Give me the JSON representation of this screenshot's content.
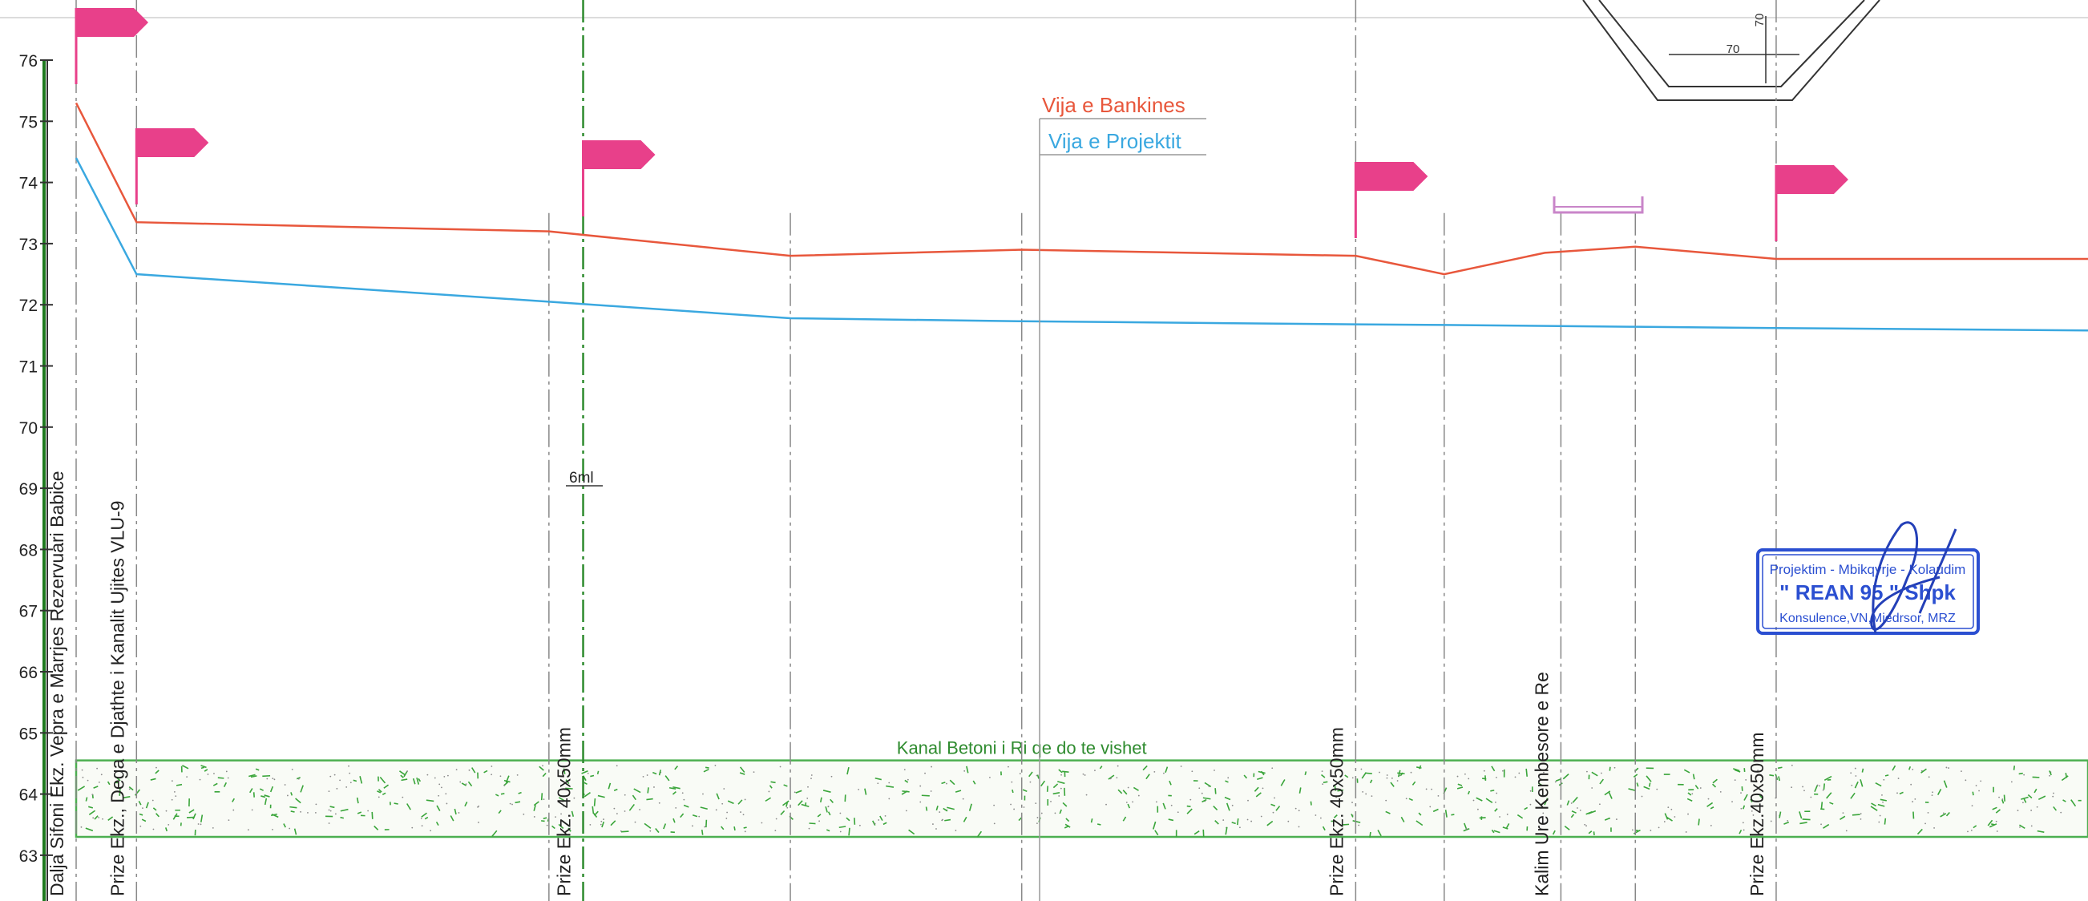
{
  "chart_data": {
    "type": "line",
    "title": "",
    "xlabel": "",
    "ylabel": "",
    "ylim": [
      62.5,
      76.5
    ],
    "y_ticks": [
      "63",
      "64",
      "65",
      "66",
      "67",
      "68",
      "69",
      "70",
      "71",
      "72",
      "73",
      "74",
      "75",
      "76"
    ],
    "x_domain": [
      0,
      100
    ],
    "series": [
      {
        "name": "Vija e Bankines",
        "color": "#e8573c",
        "points": [
          [
            0,
            75.3
          ],
          [
            3,
            73.35
          ],
          [
            23.5,
            73.2
          ],
          [
            35.5,
            72.8
          ],
          [
            47,
            72.9
          ],
          [
            63.6,
            72.8
          ],
          [
            68,
            72.5
          ],
          [
            73,
            72.85
          ],
          [
            77.5,
            72.95
          ],
          [
            84.5,
            72.75
          ],
          [
            100,
            72.75
          ]
        ]
      },
      {
        "name": "Vija e Projektit",
        "color": "#3aa8e0",
        "points": [
          [
            0,
            74.4
          ],
          [
            3,
            72.5
          ],
          [
            23.5,
            72.05
          ],
          [
            35.5,
            71.78
          ],
          [
            47,
            71.73
          ],
          [
            63.6,
            71.68
          ],
          [
            68,
            71.67
          ],
          [
            77.5,
            71.64
          ],
          [
            84.5,
            71.62
          ],
          [
            100,
            71.58
          ]
        ]
      }
    ],
    "legend": [
      "Vija e Bankines",
      "Vija e Projektit"
    ],
    "stations": [
      {
        "x": 0,
        "label": "Dalja Sifoni Ekz. Vepra e Marrjes Rezervuari Babice",
        "flag": true
      },
      {
        "x": 3,
        "label": "Prize Ekz., Dega e Djathte i Kanalit Ujites VLU-9",
        "flag": true
      },
      {
        "x": 23.5,
        "label": "",
        "flag": false
      },
      {
        "x": 25.2,
        "label": "Prize Ekz. 40x50mm",
        "flag": true
      },
      {
        "x": 35.5,
        "label": "",
        "flag": false
      },
      {
        "x": 47,
        "label": "",
        "flag": false
      },
      {
        "x": 63.6,
        "label": "Prize Ekz. 40x50mm",
        "flag": true
      },
      {
        "x": 68,
        "label": "",
        "flag": false
      },
      {
        "x": 73.8,
        "label": "Kalim Ure Kembesore e Re",
        "flag": false
      },
      {
        "x": 77.5,
        "label": "",
        "flag": false
      },
      {
        "x": 84.5,
        "label": "Prize Ekz.40x50mm",
        "flag": true
      }
    ],
    "canal_band": {
      "label": "Kanal Betoni i Ri qe do te vishet",
      "y_bottom": 63.3,
      "y_top": 64.55
    },
    "annotations": {
      "distance_label": "6ml",
      "section_dimension_width": "70",
      "section_dimension_height": "70"
    }
  },
  "stamp": {
    "line1": "Projektim - Mbikqyrje - Kolaudim",
    "line2": "\" REAN 95 \" Shpk",
    "line3": "Konsulence,VN,Miedrsor, MRZ",
    "color": "#2b4fd1"
  }
}
